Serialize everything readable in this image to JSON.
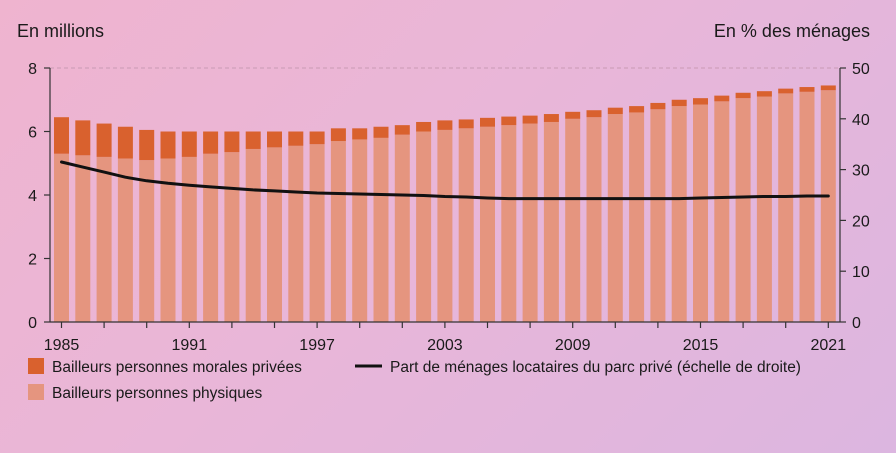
{
  "chart_data": {
    "type": "bar",
    "left_axis_title": "En millions",
    "right_axis_title": "En % des ménages",
    "y_left_lim": [
      0,
      8
    ],
    "y_left_ticks": [
      "0",
      "2",
      "4",
      "6",
      "8"
    ],
    "y_right_lim": [
      0,
      50
    ],
    "y_right_ticks": [
      "0",
      "10",
      "20",
      "30",
      "40",
      "50"
    ],
    "x_tick_labels": [
      "1985",
      "1991",
      "1997",
      "2003",
      "2009",
      "2015",
      "2021"
    ],
    "years": [
      1985,
      1986,
      1987,
      1988,
      1989,
      1990,
      1991,
      1992,
      1993,
      1994,
      1995,
      1996,
      1997,
      1998,
      1999,
      2000,
      2001,
      2002,
      2003,
      2004,
      2005,
      2006,
      2007,
      2008,
      2009,
      2010,
      2011,
      2012,
      2013,
      2014,
      2015,
      2016,
      2017,
      2018,
      2019,
      2020,
      2021
    ],
    "stacked": true,
    "series": [
      {
        "name": "Bailleurs personnes physiques",
        "color": "#e5957f",
        "values": [
          5.3,
          5.25,
          5.2,
          5.15,
          5.1,
          5.15,
          5.2,
          5.3,
          5.35,
          5.45,
          5.5,
          5.55,
          5.6,
          5.7,
          5.75,
          5.8,
          5.9,
          6.0,
          6.05,
          6.1,
          6.15,
          6.2,
          6.25,
          6.3,
          6.4,
          6.45,
          6.55,
          6.6,
          6.7,
          6.8,
          6.85,
          6.95,
          7.05,
          7.1,
          7.2,
          7.25,
          7.3
        ]
      },
      {
        "name": "Bailleurs personnes morales privées",
        "color": "#d9612e",
        "values": [
          1.15,
          1.1,
          1.05,
          1.0,
          0.95,
          0.85,
          0.8,
          0.7,
          0.65,
          0.55,
          0.5,
          0.45,
          0.4,
          0.4,
          0.35,
          0.35,
          0.3,
          0.3,
          0.3,
          0.28,
          0.28,
          0.27,
          0.25,
          0.25,
          0.22,
          0.22,
          0.2,
          0.2,
          0.2,
          0.2,
          0.2,
          0.18,
          0.17,
          0.17,
          0.15,
          0.15,
          0.15
        ]
      }
    ],
    "line": {
      "name": "Part de ménages locataires du parc privé (échelle de droite)",
      "axis": "right",
      "color": "#111111",
      "values": [
        31.5,
        30.5,
        29.5,
        28.5,
        27.8,
        27.3,
        26.9,
        26.6,
        26.3,
        26.0,
        25.8,
        25.6,
        25.4,
        25.3,
        25.2,
        25.1,
        25.0,
        24.9,
        24.7,
        24.6,
        24.4,
        24.3,
        24.3,
        24.3,
        24.3,
        24.3,
        24.3,
        24.3,
        24.3,
        24.3,
        24.4,
        24.5,
        24.6,
        24.7,
        24.7,
        24.8,
        24.8
      ]
    },
    "legend": [
      {
        "label": "Bailleurs personnes morales privées",
        "kind": "box",
        "color": "#d9612e"
      },
      {
        "label": "Part de ménages locataires du parc privé (échelle de droite)",
        "kind": "line",
        "color": "#111111"
      },
      {
        "label": "Bailleurs personnes physiques",
        "kind": "box",
        "color": "#e5957f"
      }
    ],
    "legend_position": "bottom-left",
    "grid": false
  }
}
